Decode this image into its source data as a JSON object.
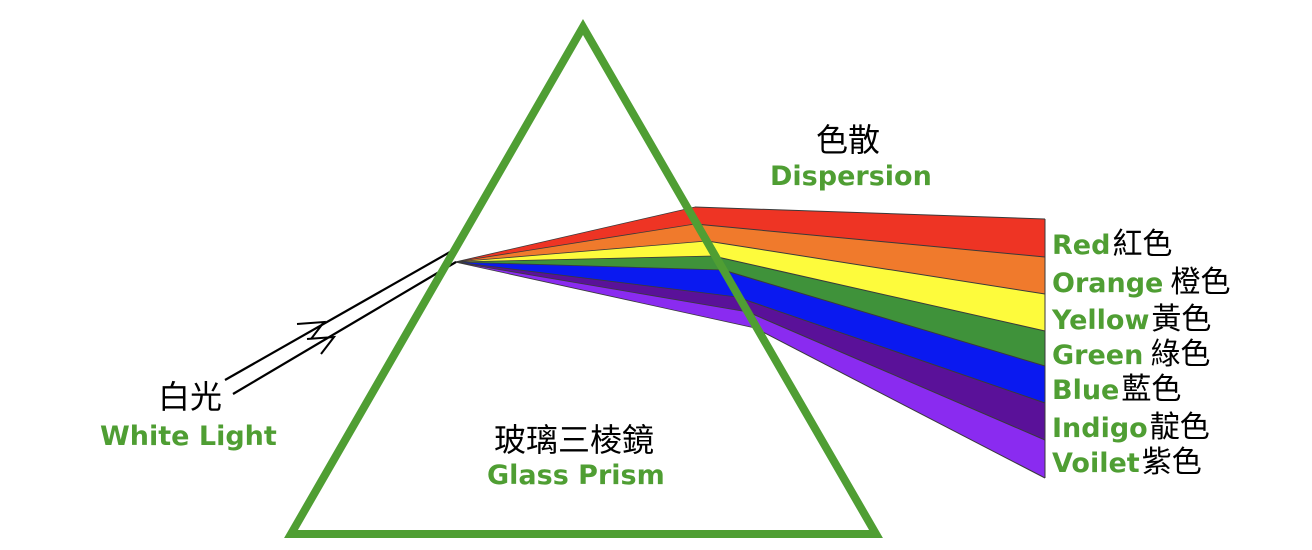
{
  "colors": {
    "label_green": "#4f9e33",
    "prism_stroke": "#4f9e33",
    "ray": "#000000"
  },
  "white_light": {
    "label_cn": "白光",
    "label_en": "White Light"
  },
  "prism": {
    "label_cn": "玻璃三棱鏡",
    "label_en": "Glass Prism"
  },
  "dispersion": {
    "label_cn": "色散",
    "label_en": "Dispersion"
  },
  "spectrum": [
    {
      "en": "Red",
      "cn": "紅色",
      "sep": "",
      "color": "#ee3424",
      "dark": "#cf2a1c"
    },
    {
      "en": "Orange",
      "cn": "橙色",
      "sep": " ",
      "color": "#f07a2c",
      "dark": "#d66523"
    },
    {
      "en": "Yellow",
      "cn": "黃色",
      "sep": "",
      "color": "#fdfb3c",
      "dark": "#e3e12f"
    },
    {
      "en": "Green",
      "cn": "綠色",
      "sep": " ",
      "color": "#3f923a",
      "dark": "#2f7a2c"
    },
    {
      "en": "Blue",
      "cn": "藍色",
      "sep": "",
      "color": "#0a19f0",
      "dark": "#0a12c4"
    },
    {
      "en": "Indigo",
      "cn": "靛色",
      "sep": "",
      "color": "#5a1199",
      "dark": "#440a78"
    },
    {
      "en": "Voilet",
      "cn": "紫色",
      "sep": "",
      "color": "#8a2bf0",
      "dark": "#6d1fc4"
    }
  ]
}
